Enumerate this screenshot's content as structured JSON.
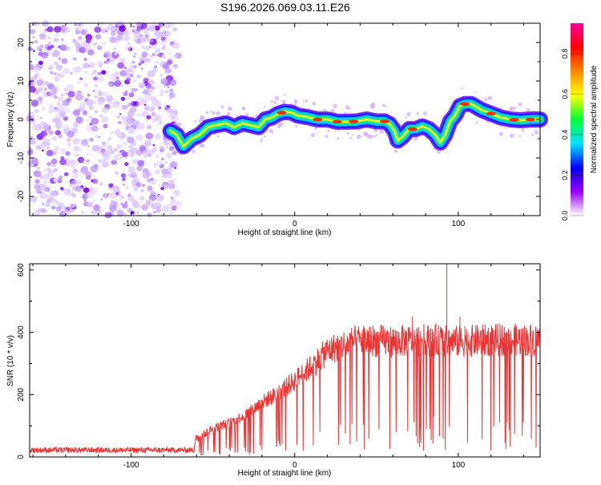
{
  "title": "S196.2026.069.03.11.E26",
  "chart_data": [
    {
      "type": "heatmap",
      "name": "spectrogram",
      "xlabel": "Height of straight line (km)",
      "ylabel": "Frequency (Hz)",
      "xlim": [
        -162,
        150
      ],
      "ylim": [
        -25,
        25
      ],
      "xticks": [
        -100,
        0,
        100
      ],
      "xtick_labels": [
        "-100",
        "0",
        "100"
      ],
      "yticks": [
        -20,
        -10,
        0,
        10,
        20
      ],
      "ytick_labels": [
        "-20",
        "-10",
        "0",
        "10",
        "20"
      ],
      "noise_region_x": [
        -162,
        -71
      ],
      "ridge": {
        "x": [
          -76,
          -72,
          -68,
          -63,
          -58,
          -53,
          -48,
          -42,
          -37,
          -32,
          -27,
          -22,
          -18,
          -14,
          -10,
          -6,
          -2,
          2,
          8,
          14,
          20,
          26,
          32,
          38,
          44,
          50,
          55,
          58,
          61,
          63,
          66,
          70,
          74,
          78,
          82,
          86,
          89,
          92,
          95,
          98,
          101,
          104,
          108,
          114,
          120,
          126,
          132,
          138,
          144,
          150
        ],
        "y": [
          -3,
          -4,
          -7,
          -5,
          -4,
          -2,
          -1.5,
          -1,
          -2,
          -1,
          -1.5,
          -2,
          0,
          0.5,
          1.5,
          2,
          1.8,
          1,
          0.6,
          0,
          0,
          -0.6,
          -0.6,
          -0.5,
          0,
          -0.5,
          -0.5,
          -1.2,
          -3,
          -5.5,
          -4.5,
          -2.5,
          -2.5,
          -1.8,
          -2.5,
          -4,
          -6,
          -4,
          -0.5,
          1,
          3.5,
          4,
          4,
          2.5,
          1.5,
          0.5,
          0,
          -0.2,
          0,
          0
        ]
      },
      "colorbar": {
        "label": "Normalized spectral amplitude",
        "range": [
          0.0,
          0.95
        ],
        "ticks": [
          0.0,
          0.2,
          0.4,
          0.6,
          0.8
        ],
        "tick_labels": [
          "0.0",
          "0.2",
          "0.4",
          "0.6",
          "0.8"
        ],
        "colors": [
          "#ffffff",
          "#9900ff",
          "#0000ff",
          "#00e5ff",
          "#00ff33",
          "#ffff00",
          "#ff8800",
          "#ff0000",
          "#ff0099"
        ]
      }
    },
    {
      "type": "line",
      "name": "snr",
      "xlabel": "Height of straight line (km)",
      "ylabel": "SNR (10 * v/v)",
      "xlim": [
        -162,
        150
      ],
      "ylim": [
        0,
        620
      ],
      "xticks": [
        -100,
        0,
        100
      ],
      "xtick_labels": [
        "-100",
        "0",
        "100"
      ],
      "yticks": [
        0,
        200,
        400,
        600
      ],
      "ytick_labels": [
        "0",
        "200",
        "400",
        "600"
      ],
      "color": "#ee3333",
      "envelope": {
        "x": [
          -162,
          -100,
          -62,
          -60,
          -50,
          -40,
          -30,
          -20,
          -10,
          0,
          10,
          20,
          30,
          40,
          60,
          80,
          100,
          120,
          150
        ],
        "y": [
          22,
          22,
          22,
          60,
          90,
          110,
          135,
          175,
          205,
          245,
          290,
          340,
          360,
          375,
          370,
          375,
          370,
          375,
          375
        ]
      },
      "spikes": [
        {
          "x": 93,
          "y": 625
        },
        {
          "x": 72,
          "y": 450
        },
        {
          "x": 101,
          "y": 450
        },
        {
          "x": 104,
          "y": 420
        },
        {
          "x": 80,
          "y": 340
        },
        {
          "x": 85,
          "y": 130
        }
      ]
    }
  ]
}
